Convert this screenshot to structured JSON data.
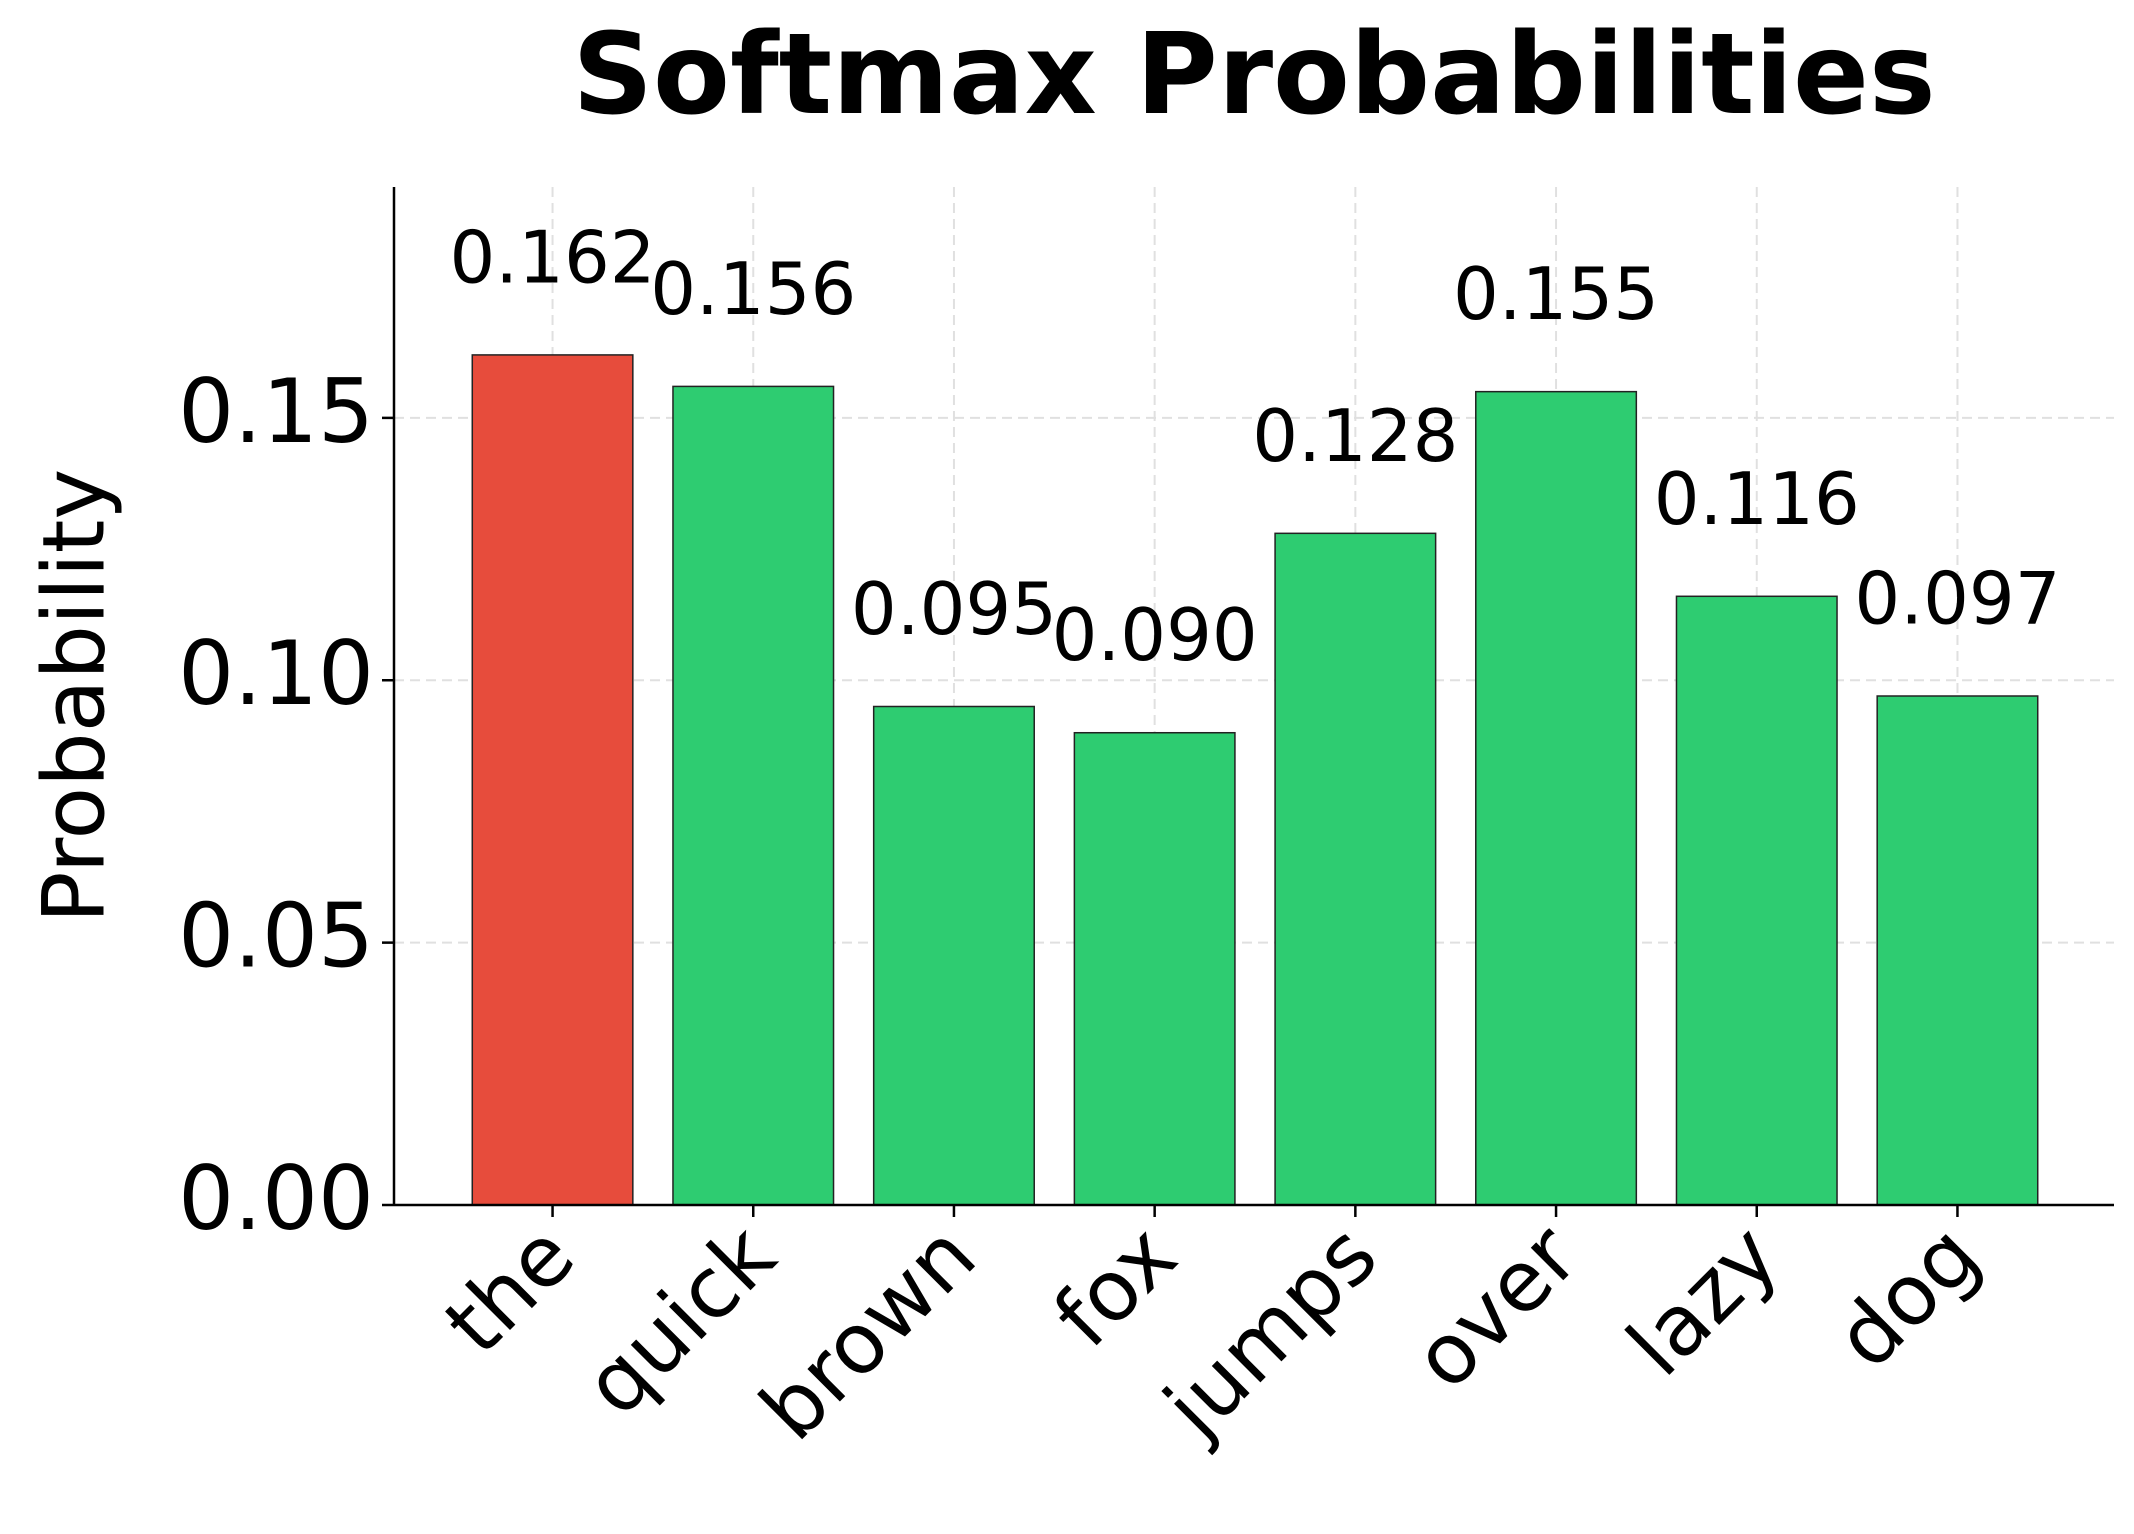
{
  "chart_data": {
    "type": "bar",
    "title": "Softmax Probabilities",
    "y_label": "Probability",
    "categories": [
      "the",
      "quick",
      "brown",
      "fox",
      "jumps",
      "over",
      "lazy",
      "dog"
    ],
    "values": [
      0.162,
      0.156,
      0.095,
      0.09,
      0.128,
      0.155,
      0.116,
      0.097
    ],
    "value_labels": [
      "0.162",
      "0.156",
      "0.095",
      "0.090",
      "0.128",
      "0.155",
      "0.116",
      "0.097"
    ],
    "colors": [
      "#e74c3c",
      "#2ecc71",
      "#2ecc71",
      "#2ecc71",
      "#2ecc71",
      "#2ecc71",
      "#2ecc71",
      "#2ecc71"
    ],
    "ylim": [
      0,
      0.194
    ],
    "yticks": [
      {
        "value": 0,
        "label": "0.00"
      },
      0.05,
      {
        "value": 0.1,
        "label": "0.10"
      },
      0.15
    ],
    "grid": true
  }
}
